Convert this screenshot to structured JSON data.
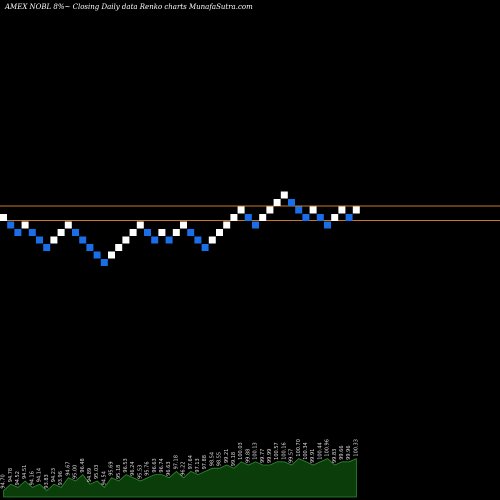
{
  "chart_data": {
    "type": "renko",
    "title": "AMEX  NOBL  8%~  Closing Daily data  Renko  charts MunafaSutra.com",
    "colors": {
      "background": "#000000",
      "up_brick": "#ffffff",
      "down_brick": "#1a6fe8",
      "reference_line": "#c87a2a",
      "volume_fill": "#0b3d0b",
      "volume_line": "#2e8b2e"
    },
    "reference_lines": [
      {
        "level": 1,
        "style": "solid"
      },
      {
        "level": 0,
        "style": "solid"
      }
    ],
    "bricks": [
      {
        "dir": "up",
        "level": 0
      },
      {
        "dir": "down",
        "level": -1
      },
      {
        "dir": "down",
        "level": -2
      },
      {
        "dir": "up",
        "level": -1
      },
      {
        "dir": "down",
        "level": -2
      },
      {
        "dir": "down",
        "level": -3
      },
      {
        "dir": "down",
        "level": -4
      },
      {
        "dir": "up",
        "level": -3
      },
      {
        "dir": "up",
        "level": -2
      },
      {
        "dir": "up",
        "level": -1
      },
      {
        "dir": "down",
        "level": -2
      },
      {
        "dir": "down",
        "level": -3
      },
      {
        "dir": "down",
        "level": -4
      },
      {
        "dir": "down",
        "level": -5
      },
      {
        "dir": "down",
        "level": -6
      },
      {
        "dir": "up",
        "level": -5
      },
      {
        "dir": "up",
        "level": -4
      },
      {
        "dir": "up",
        "level": -3
      },
      {
        "dir": "up",
        "level": -2
      },
      {
        "dir": "up",
        "level": -1
      },
      {
        "dir": "down",
        "level": -2
      },
      {
        "dir": "down",
        "level": -3
      },
      {
        "dir": "up",
        "level": -2
      },
      {
        "dir": "down",
        "level": -3
      },
      {
        "dir": "up",
        "level": -2
      },
      {
        "dir": "up",
        "level": -1
      },
      {
        "dir": "down",
        "level": -2
      },
      {
        "dir": "down",
        "level": -3
      },
      {
        "dir": "down",
        "level": -4
      },
      {
        "dir": "up",
        "level": -3
      },
      {
        "dir": "up",
        "level": -2
      },
      {
        "dir": "up",
        "level": -1
      },
      {
        "dir": "up",
        "level": 0
      },
      {
        "dir": "up",
        "level": 1
      },
      {
        "dir": "down",
        "level": 0
      },
      {
        "dir": "down",
        "level": -1
      },
      {
        "dir": "up",
        "level": 0
      },
      {
        "dir": "up",
        "level": 1
      },
      {
        "dir": "up",
        "level": 2
      },
      {
        "dir": "up",
        "level": 3
      },
      {
        "dir": "down",
        "level": 2
      },
      {
        "dir": "down",
        "level": 1
      },
      {
        "dir": "down",
        "level": 0
      },
      {
        "dir": "up",
        "level": 1
      },
      {
        "dir": "down",
        "level": 0
      },
      {
        "dir": "down",
        "level": -1
      },
      {
        "dir": "up",
        "level": 0
      },
      {
        "dir": "up",
        "level": 1
      },
      {
        "dir": "down",
        "level": 0
      },
      {
        "dir": "up",
        "level": 1
      }
    ],
    "volume_labels": [
      "94.70",
      "94.78",
      "94.52",
      "94.51",
      "94.16",
      "94.14",
      "93.83",
      "94.23",
      "93.96",
      "94.67",
      "95.00",
      "96.48",
      "94.89",
      "95.03",
      "94.54",
      "95.69",
      "95.18",
      "96.53",
      "96.24",
      "95.53",
      "95.76",
      "96.63",
      "96.74",
      "96.63",
      "97.18",
      "96.22",
      "97.64",
      "97.13",
      "97.88",
      "98.54",
      "98.55",
      "99.21",
      "99.18",
      "100.03",
      "99.88",
      "100.13",
      "99.77",
      "99.99",
      "100.57",
      "100.16",
      "99.57",
      "100.70",
      "100.34",
      "99.91",
      "100.44",
      "100.96",
      "99.83",
      "99.66",
      "99.96",
      "100.33"
    ],
    "volume_values": [
      2,
      4,
      3,
      5,
      3,
      4,
      2,
      4,
      3,
      6,
      5,
      7,
      4,
      5,
      3,
      6,
      5,
      7,
      6,
      5,
      6,
      7,
      7,
      6,
      8,
      6,
      8,
      7,
      8,
      9,
      9,
      10,
      9,
      11,
      10,
      11,
      10,
      10,
      11,
      11,
      10,
      12,
      11,
      10,
      11,
      12,
      10,
      11,
      11,
      12
    ]
  }
}
